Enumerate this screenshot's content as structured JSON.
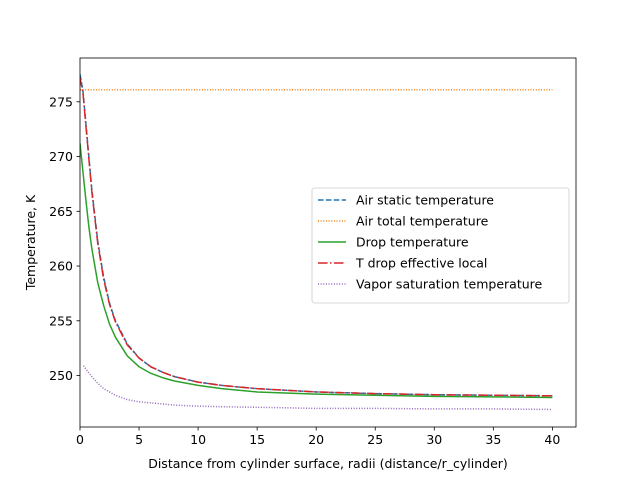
{
  "chart_data": {
    "type": "line",
    "xlabel": "Distance from cylinder surface, radii (distance/r_cylinder)",
    "ylabel": "Temperature, K",
    "xlim": [
      0,
      42
    ],
    "ylim": [
      245.3,
      279.0
    ],
    "xticks": [
      0,
      5,
      10,
      15,
      20,
      25,
      30,
      35,
      40
    ],
    "yticks": [
      250,
      255,
      260,
      265,
      270,
      275
    ],
    "grid": false,
    "legend_position": "center-right",
    "series": [
      {
        "name": "Air static temperature",
        "color": "#1f77b4",
        "dash": "dashed",
        "x": [
          0.0,
          0.25,
          0.5,
          0.75,
          1.0,
          1.5,
          2.0,
          2.5,
          3.0,
          4.0,
          5.0,
          6.0,
          7.0,
          8.0,
          10.0,
          12.0,
          15.0,
          20.0,
          25.0,
          30.0,
          35.0,
          40.0
        ],
        "y": [
          277.5,
          276.0,
          273.0,
          270.0,
          267.0,
          262.3,
          259.0,
          256.6,
          255.0,
          252.9,
          251.6,
          250.8,
          250.3,
          249.9,
          249.4,
          249.1,
          248.8,
          248.5,
          248.35,
          248.25,
          248.2,
          248.15
        ]
      },
      {
        "name": "Air total temperature",
        "color": "#ff7f0e",
        "dash": "dotted",
        "x": [
          0.0,
          40.0
        ],
        "y": [
          276.1,
          276.1
        ]
      },
      {
        "name": "Drop temperature",
        "color": "#2ca02c",
        "dash": "solid",
        "x": [
          0.0,
          0.25,
          0.5,
          0.75,
          1.0,
          1.5,
          2.0,
          2.5,
          3.0,
          4.0,
          5.0,
          6.0,
          7.0,
          8.0,
          10.0,
          12.0,
          15.0,
          20.0,
          25.0,
          30.0,
          35.0,
          40.0
        ],
        "y": [
          271.2,
          268.6,
          266.0,
          263.6,
          261.6,
          258.5,
          256.4,
          254.7,
          253.5,
          251.8,
          250.8,
          250.2,
          249.8,
          249.5,
          249.1,
          248.8,
          248.5,
          248.3,
          248.2,
          248.1,
          248.05,
          248.0
        ]
      },
      {
        "name": "T drop effective local",
        "color": "#d62728",
        "dash": "dashdot",
        "x": [
          0.0,
          0.25,
          0.5,
          0.75,
          1.0,
          1.5,
          2.0,
          2.5,
          3.0,
          4.0,
          5.0,
          6.0,
          7.0,
          8.0,
          10.0,
          12.0,
          15.0,
          20.0,
          25.0,
          30.0,
          35.0,
          40.0
        ],
        "y": [
          277.2,
          275.8,
          272.8,
          269.8,
          266.8,
          262.1,
          258.8,
          256.5,
          254.9,
          252.8,
          251.6,
          250.8,
          250.3,
          249.9,
          249.4,
          249.1,
          248.8,
          248.5,
          248.35,
          248.25,
          248.2,
          248.15
        ]
      },
      {
        "name": "Vapor saturation temperature",
        "color": "#9467bd",
        "dash": "dotted",
        "x": [
          0.3,
          0.5,
          1.0,
          1.5,
          2.0,
          3.0,
          4.0,
          5.0,
          6.0,
          8.0,
          10.0,
          12.0,
          15.0,
          20.0,
          25.0,
          30.0,
          35.0,
          40.0
        ],
        "y": [
          250.9,
          250.6,
          249.9,
          249.3,
          248.8,
          248.2,
          247.8,
          247.6,
          247.5,
          247.3,
          247.2,
          247.15,
          247.1,
          247.0,
          247.0,
          246.95,
          246.95,
          246.9
        ]
      }
    ]
  }
}
